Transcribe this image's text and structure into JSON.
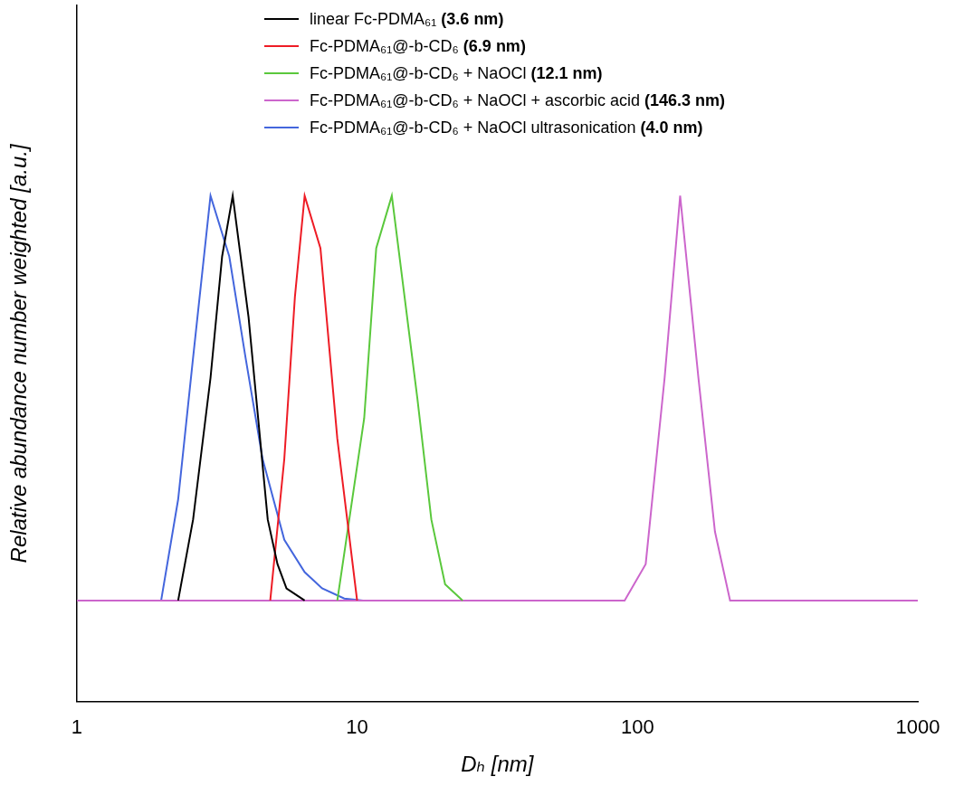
{
  "chart_data": {
    "type": "line",
    "x_label": "Dₕ [nm]",
    "y_label": "Relative abundance number weighted [a.u.]",
    "log": "x",
    "grid": false,
    "legend": "top",
    "tick_labels": "x",
    "xlim": [
      1,
      1000
    ],
    "xticks": [
      1,
      10,
      100,
      1000
    ],
    "ylim": [
      -0.25,
      1.47
    ],
    "series": [
      {
        "name": "linear Fc-PDMA₆₁ (3.6 nm)",
        "color": "#000000",
        "x": [
          2.3,
          2.6,
          3.0,
          3.3,
          3.6,
          4.1,
          4.8,
          5.2,
          5.6,
          6.5
        ],
        "values": [
          0,
          0.2,
          0.55,
          0.85,
          1.0,
          0.7,
          0.2,
          0.09,
          0.03,
          0
        ]
      },
      {
        "name": "Fc-PDMA₆₁@-b-CD₆ (6.9 nm)",
        "color": "#ee1c25",
        "x": [
          4.9,
          5.5,
          6.0,
          6.5,
          7.4,
          8.5,
          10
        ],
        "values": [
          0,
          0.35,
          0.75,
          1.0,
          0.87,
          0.4,
          0
        ]
      },
      {
        "name": "Fc-PDMA₆₁@-b-CD₆ + NaOCl (12.1 nm)",
        "color": "#5ac83c",
        "x": [
          8.5,
          10.6,
          11.7,
          13.3,
          16.4,
          18.4,
          20.6,
          23.8
        ],
        "values": [
          0,
          0.45,
          0.87,
          1.0,
          0.5,
          0.2,
          0.04,
          0
        ]
      },
      {
        "name": "Fc-PDMA₆₁@-b-CD₆ + NaOCl + ascorbic acid (146.3 nm)",
        "color": "#cc66cc",
        "x": [
          1,
          90,
          107,
          125,
          142,
          165,
          189,
          214,
          1000
        ],
        "values": [
          0,
          0,
          0.09,
          0.55,
          1.0,
          0.55,
          0.17,
          0,
          0
        ]
      },
      {
        "name": "Fc-PDMA₆₁@-b-CD₆ + NaOCl ultrasonication (4.0 nm)",
        "color": "#4466dd",
        "x": [
          2.0,
          2.3,
          2.6,
          3.0,
          3.5,
          4.0,
          4.6,
          5.5,
          6.5,
          7.5,
          9,
          10.5
        ],
        "values": [
          0,
          0.25,
          0.6,
          1.0,
          0.85,
          0.6,
          0.35,
          0.15,
          0.07,
          0.03,
          0.005,
          0
        ]
      }
    ]
  }
}
